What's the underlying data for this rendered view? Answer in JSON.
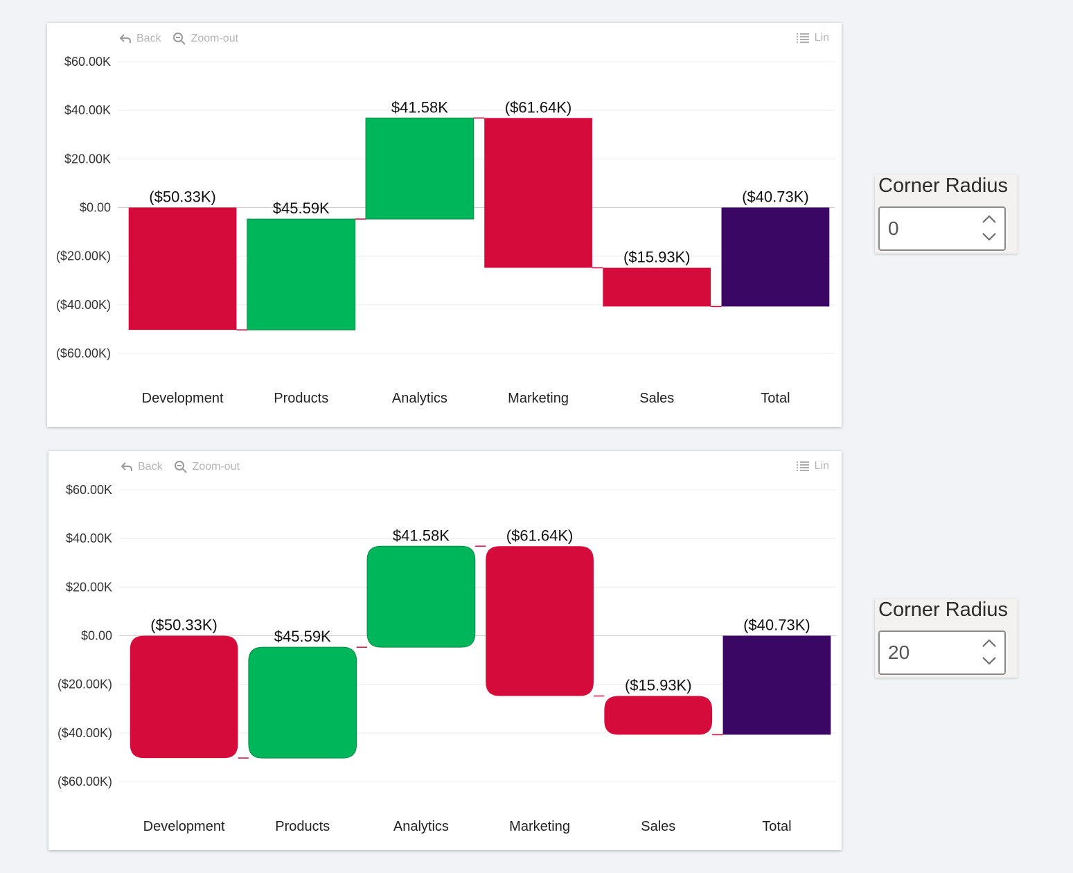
{
  "charts": [
    {
      "toolbar": {
        "back_label": "Back",
        "zoom_label": "Zoom-out",
        "legend_label": "Lin"
      },
      "control": {
        "label": "Corner Radius",
        "value": "0"
      },
      "corner_radius": 0
    },
    {
      "toolbar": {
        "back_label": "Back",
        "zoom_label": "Zoom-out",
        "legend_label": "Lin"
      },
      "control": {
        "label": "Corner Radius",
        "value": "20"
      },
      "corner_radius": 20
    }
  ],
  "colors": {
    "increase": "#00b65b",
    "decrease": "#d40b3b",
    "total": "#3b0764",
    "connector": "#d40b3b"
  },
  "chart_data": [
    {
      "type": "bar",
      "subtype": "waterfall",
      "categories": [
        "Development",
        "Products",
        "Analytics",
        "Marketing",
        "Sales",
        "Total"
      ],
      "values": [
        -50.33,
        45.59,
        41.58,
        -61.64,
        -15.93,
        -40.73
      ],
      "value_units": "thousands USD",
      "data_labels": [
        "($50.33K)",
        "$45.59K",
        "$41.58K",
        "($61.64K)",
        "($15.93K)",
        "($40.73K)"
      ],
      "is_total": [
        false,
        false,
        false,
        false,
        false,
        true
      ],
      "yticks": [
        "$60.00K",
        "$40.00K",
        "$20.00K",
        "$0.00",
        "($20.00K)",
        "($40.00K)",
        "($60.00K)"
      ],
      "ylim": [
        -60,
        60
      ],
      "grid": true
    },
    {
      "type": "bar",
      "subtype": "waterfall",
      "categories": [
        "Development",
        "Products",
        "Analytics",
        "Marketing",
        "Sales",
        "Total"
      ],
      "values": [
        -50.33,
        45.59,
        41.58,
        -61.64,
        -15.93,
        -40.73
      ],
      "value_units": "thousands USD",
      "data_labels": [
        "($50.33K)",
        "$45.59K",
        "$41.58K",
        "($61.64K)",
        "($15.93K)",
        "($40.73K)"
      ],
      "is_total": [
        false,
        false,
        false,
        false,
        false,
        true
      ],
      "yticks": [
        "$60.00K",
        "$40.00K",
        "$20.00K",
        "$0.00",
        "($20.00K)",
        "($40.00K)",
        "($60.00K)"
      ],
      "ylim": [
        -60,
        60
      ],
      "grid": true
    }
  ]
}
